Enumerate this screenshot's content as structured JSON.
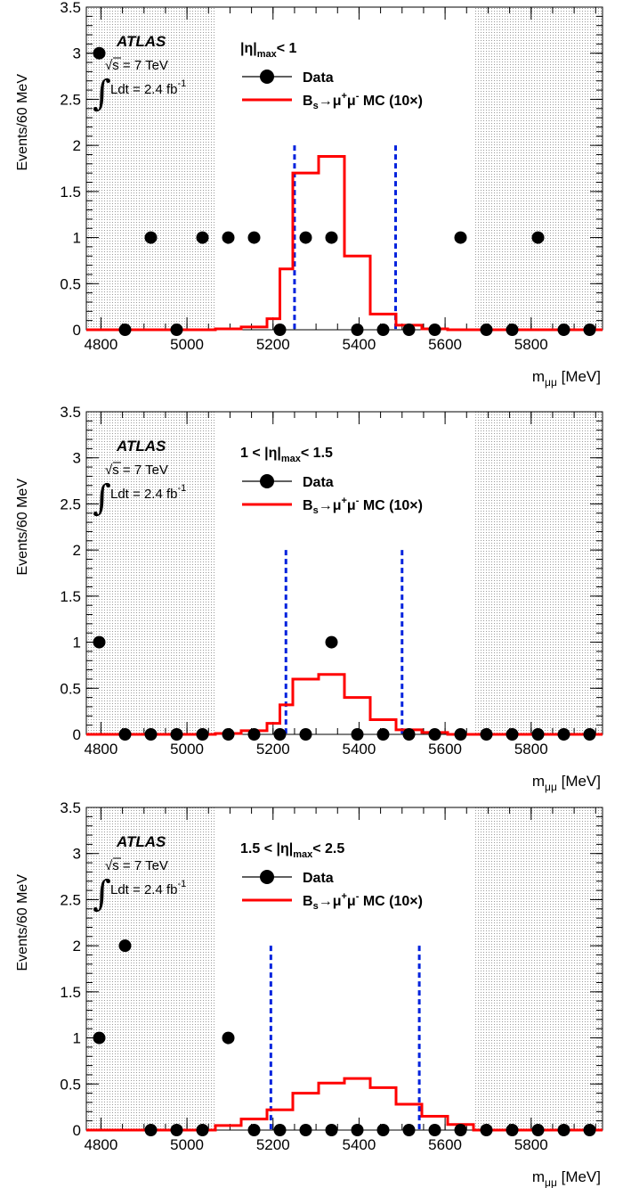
{
  "chart_data": [
    {
      "type": "scatter",
      "region_label": "|η|max < 1",
      "region_parts": {
        "pre": "",
        "eta": "|η|",
        "sub": "max",
        "post": "< 1"
      },
      "ylabel": "Events/60 MeV",
      "xlabel": {
        "main": "m",
        "sub": "μμ",
        "unit": "[MeV]"
      },
      "experiment": "ATLAS",
      "energy": {
        "sqrt": "√",
        "label": "s = 7 TeV"
      },
      "lumi": {
        "integral": "∫",
        "label": "Ldt = 2.4 fb",
        "exp": "-1"
      },
      "xlim": [
        4766,
        5966
      ],
      "ylim": [
        0,
        3.5
      ],
      "xticks": [
        "4800",
        "5000",
        "5200",
        "5400",
        "5600",
        "5800"
      ],
      "yticks": [
        "0",
        "0.5",
        "1",
        "1.5",
        "2",
        "2.5",
        "3",
        "3.5"
      ],
      "sidebands": [
        [
          4766,
          5066
        ],
        [
          5666,
          5966
        ]
      ],
      "signal_window": [
        5250,
        5485
      ],
      "legend": [
        {
          "name": "Data",
          "marker": "circle"
        },
        {
          "name_parts": {
            "pre": "B",
            "sub": "s",
            "mid": "→μ",
            "sup1": "+",
            "mid2": "μ",
            "sup2": "-",
            "post": " MC (10×)"
          },
          "marker": "line"
        }
      ],
      "data_x": [
        4796,
        4856,
        4916,
        4976,
        5036,
        5096,
        5156,
        5216,
        5276,
        5336,
        5396,
        5456,
        5516,
        5576,
        5636,
        5696,
        5756,
        5816,
        5876,
        5936
      ],
      "data_y": [
        3,
        0,
        1,
        0,
        1,
        1,
        1,
        0,
        1,
        1,
        0,
        0,
        0,
        0,
        1,
        0,
        0,
        1,
        0,
        0
      ],
      "mc_edges": [
        4766,
        5066,
        5126,
        5186,
        5216,
        5246,
        5306,
        5366,
        5426,
        5486,
        5546,
        5606,
        5666,
        5966
      ],
      "mc_values": [
        0,
        0.01,
        0.03,
        0.12,
        0.66,
        1.7,
        1.88,
        0.8,
        0.17,
        0.05,
        0.01,
        0,
        0
      ]
    },
    {
      "type": "scatter",
      "region_label": "1 < |η|max < 1.5",
      "region_parts": {
        "pre": "1 < ",
        "eta": "|η|",
        "sub": "max",
        "post": "< 1.5"
      },
      "ylabel": "Events/60 MeV",
      "xlabel": {
        "main": "m",
        "sub": "μμ",
        "unit": "[MeV]"
      },
      "experiment": "ATLAS",
      "energy": {
        "sqrt": "√",
        "label": "s = 7 TeV"
      },
      "lumi": {
        "integral": "∫",
        "label": "Ldt = 2.4 fb",
        "exp": "-1"
      },
      "xlim": [
        4766,
        5966
      ],
      "ylim": [
        0,
        3.5
      ],
      "xticks": [
        "4800",
        "5000",
        "5200",
        "5400",
        "5600",
        "5800"
      ],
      "yticks": [
        "0",
        "0.5",
        "1",
        "1.5",
        "2",
        "2.5",
        "3",
        "3.5"
      ],
      "sidebands": [
        [
          4766,
          5066
        ],
        [
          5666,
          5966
        ]
      ],
      "signal_window": [
        5230,
        5500
      ],
      "legend": [
        {
          "name": "Data",
          "marker": "circle"
        },
        {
          "name_parts": {
            "pre": "B",
            "sub": "s",
            "mid": "→μ",
            "sup1": "+",
            "mid2": "μ",
            "sup2": "-",
            "post": " MC (10×)"
          },
          "marker": "line"
        }
      ],
      "data_x": [
        4796,
        4856,
        4916,
        4976,
        5036,
        5096,
        5156,
        5216,
        5276,
        5336,
        5396,
        5456,
        5516,
        5576,
        5636,
        5696,
        5756,
        5816,
        5876,
        5936
      ],
      "data_y": [
        1,
        0,
        0,
        0,
        0,
        0,
        0,
        0,
        0,
        1,
        0,
        0,
        0,
        0,
        0,
        0,
        0,
        0,
        0,
        0
      ],
      "mc_edges": [
        4766,
        5066,
        5126,
        5186,
        5216,
        5246,
        5306,
        5366,
        5426,
        5486,
        5546,
        5606,
        5666,
        5966
      ],
      "mc_values": [
        0,
        0.01,
        0.04,
        0.12,
        0.32,
        0.6,
        0.65,
        0.4,
        0.16,
        0.05,
        0.02,
        0,
        0
      ]
    },
    {
      "type": "scatter",
      "region_label": "1.5 < |η|max < 2.5",
      "region_parts": {
        "pre": "1.5 < ",
        "eta": "|η|",
        "sub": "max",
        "post": "< 2.5"
      },
      "ylabel": "Events/60 MeV",
      "xlabel": {
        "main": "m",
        "sub": "μμ",
        "unit": "[MeV]"
      },
      "experiment": "ATLAS",
      "energy": {
        "sqrt": "√",
        "label": "s = 7 TeV"
      },
      "lumi": {
        "integral": "∫",
        "label": "Ldt = 2.4 fb",
        "exp": "-1"
      },
      "xlim": [
        4766,
        5966
      ],
      "ylim": [
        0,
        3.5
      ],
      "xticks": [
        "4800",
        "5000",
        "5200",
        "5400",
        "5600",
        "5800"
      ],
      "yticks": [
        "0",
        "0.5",
        "1",
        "1.5",
        "2",
        "2.5",
        "3",
        "3.5"
      ],
      "sidebands": [
        [
          4766,
          5066
        ],
        [
          5666,
          5966
        ]
      ],
      "signal_window": [
        5195,
        5540
      ],
      "legend": [
        {
          "name": "Data",
          "marker": "circle"
        },
        {
          "name_parts": {
            "pre": "B",
            "sub": "s",
            "mid": "→μ",
            "sup1": "+",
            "mid2": "μ",
            "sup2": "-",
            "post": " MC (10×)"
          },
          "marker": "line"
        }
      ],
      "data_x": [
        4796,
        4856,
        4916,
        4976,
        5036,
        5096,
        5156,
        5216,
        5276,
        5336,
        5396,
        5456,
        5516,
        5576,
        5636,
        5696,
        5756,
        5816,
        5876,
        5936
      ],
      "data_y": [
        1,
        2,
        0,
        0,
        0,
        1,
        0,
        0,
        0,
        0,
        0,
        0,
        0,
        0,
        0,
        0,
        0,
        0,
        0,
        0
      ],
      "mc_edges": [
        4766,
        5066,
        5126,
        5186,
        5246,
        5306,
        5366,
        5426,
        5486,
        5546,
        5606,
        5666,
        5966
      ],
      "mc_values": [
        0,
        0.05,
        0.12,
        0.22,
        0.4,
        0.51,
        0.56,
        0.46,
        0.28,
        0.15,
        0.06,
        0
      ]
    }
  ],
  "colors": {
    "data": "#000000",
    "mc": "#ff0000",
    "window": "#0022dd",
    "sideband": "#e8e8e8",
    "axis": "#000000"
  }
}
